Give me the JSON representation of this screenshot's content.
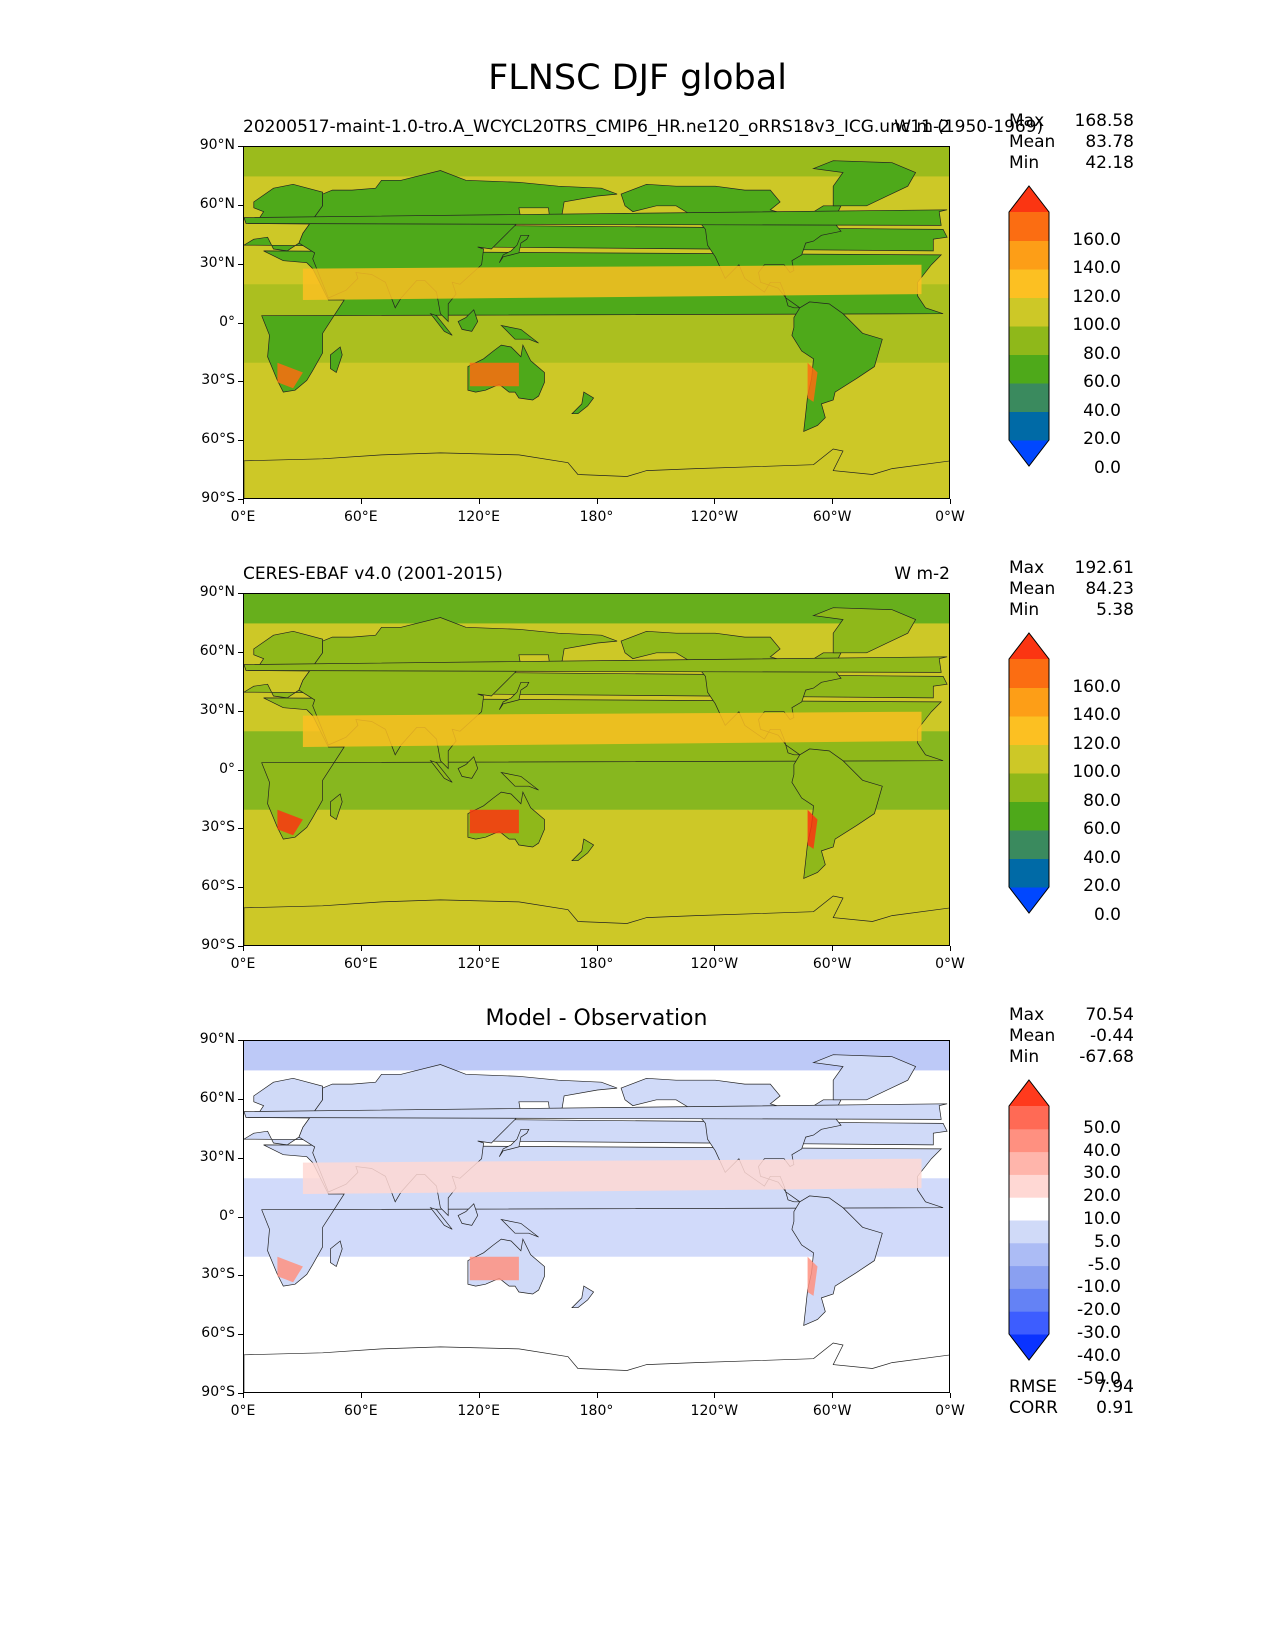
{
  "figure": {
    "title": "FLNSC DJF global"
  },
  "axes": {
    "lat_labels": [
      "90°N",
      "60°N",
      "30°N",
      "0°",
      "30°S",
      "60°S",
      "90°S"
    ],
    "lon_labels": [
      "0°E",
      "60°E",
      "120°E",
      "180°",
      "120°W",
      "60°W",
      "0°W"
    ]
  },
  "panels": [
    {
      "id": "test",
      "left_title": "20200517-maint-1.0-tro.A_WCYCL20TRS_CMIP6_HR.ne120_oRRS18v3_ICG.unc11 (1950-1969)",
      "right_title": "W m-2",
      "stats": [
        {
          "label": "Max",
          "value": "168.58"
        },
        {
          "label": "Mean",
          "value": "83.78"
        },
        {
          "label": "Min",
          "value": "42.18"
        }
      ],
      "colorbar": {
        "colors": [
          "#0047ff",
          "#006aa6",
          "#3a8a5e",
          "#4ea91a",
          "#8fb81a",
          "#cdc827",
          "#fcc022",
          "#fd9e17",
          "#fb6d12",
          "#fb3512"
        ],
        "labels": [
          "160.0",
          "140.0",
          "120.0",
          "100.0",
          "80.0",
          "60.0",
          "40.0",
          "20.0",
          "0.0"
        ]
      }
    },
    {
      "id": "reference",
      "left_title": "CERES-EBAF v4.0 (2001-2015)",
      "right_title": "W m-2",
      "stats": [
        {
          "label": "Max",
          "value": "192.61"
        },
        {
          "label": "Mean",
          "value": "84.23"
        },
        {
          "label": "Min",
          "value": "5.38"
        }
      ],
      "colorbar": {
        "colors": [
          "#0047ff",
          "#006aa6",
          "#3a8a5e",
          "#4ea91a",
          "#8fb81a",
          "#cdc827",
          "#fcc022",
          "#fd9e17",
          "#fb6d12",
          "#fb3512"
        ],
        "labels": [
          "160.0",
          "140.0",
          "120.0",
          "100.0",
          "80.0",
          "60.0",
          "40.0",
          "20.0",
          "0.0"
        ]
      }
    },
    {
      "id": "difference",
      "center_title": "Model - Observation",
      "stats": [
        {
          "label": "Max",
          "value": "70.54"
        },
        {
          "label": "Mean",
          "value": "-0.44"
        },
        {
          "label": "Min",
          "value": "-67.68"
        }
      ],
      "colorbar": {
        "colors": [
          "#0a33ff",
          "#3d5dff",
          "#6482f5",
          "#8aa0f1",
          "#acbcf5",
          "#d0daf8",
          "#ffffff",
          "#ffd8d4",
          "#ffb5ab",
          "#ff9080",
          "#ff6a55",
          "#ff3a1d"
        ],
        "labels": [
          "50.0",
          "40.0",
          "30.0",
          "20.0",
          "10.0",
          "5.0",
          "-5.0",
          "-10.0",
          "-20.0",
          "-30.0",
          "-40.0",
          "-50.0"
        ]
      },
      "metrics": [
        {
          "label": "RMSE",
          "value": "7.94"
        },
        {
          "label": "CORR",
          "value": "0.91"
        }
      ]
    }
  ]
}
